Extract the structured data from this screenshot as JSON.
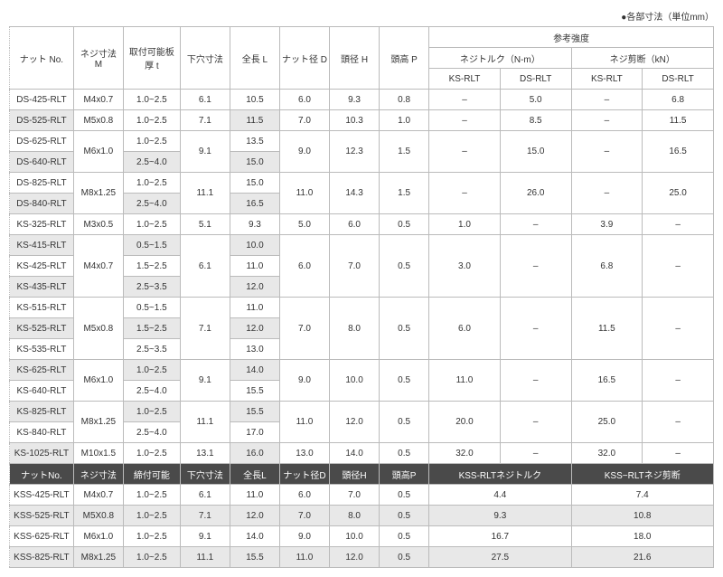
{
  "caption": "●各部寸法（単位mm）",
  "headers": {
    "nut_no": "ナット\nNo.",
    "thread": "ネジ寸法\nM",
    "plate": "取付可能板厚\nt",
    "pilot": "下穴寸法",
    "length": "全長\nL",
    "nut_d": "ナット径\nD",
    "head_h": "頭径\nH",
    "head_p": "頭高\nP",
    "ref": "参考強度",
    "torque": "ネジトルク（N-m）",
    "shear": "ネジ剪断（kN）",
    "ks_rlt": "KS-RLT",
    "ds_rlt": "DS-RLT"
  },
  "headers2": {
    "nut_no": "ナットNo.",
    "thread": "ネジ寸法",
    "plate": "締付可能",
    "pilot": "下穴寸法",
    "length": "全長L",
    "nut_d": "ナット径D",
    "head_h": "頭径H",
    "head_p": "頭高P",
    "torque": "KSS-RLTネジトルク",
    "shear": "KSS−RLTネジ剪断"
  },
  "rows": [
    {
      "no": "DS-425-RLT",
      "m": "M4x0.7",
      "t": "1.0~2.5",
      "pilot": "6.1",
      "l": "10.5",
      "d": "6.0",
      "h": "9.3",
      "p": "0.8",
      "tq_ks": "–",
      "tq_ds": "5.0",
      "sh_ks": "–",
      "sh_ds": "6.8"
    },
    {
      "no": "DS-525-RLT",
      "m": "M5x0.8",
      "t": "1.0~2.5",
      "pilot": "7.1",
      "l": "11.5",
      "d": "7.0",
      "h": "10.3",
      "p": "1.0",
      "tq_ks": "–",
      "tq_ds": "8.5",
      "sh_ks": "–",
      "sh_ds": "11.5",
      "shade": true
    },
    {
      "no": "DS-625-RLT",
      "m": "M6x1.0",
      "m_rs": 2,
      "t": "1.0~2.5",
      "pilot": "9.1",
      "pilot_rs": 2,
      "l": "13.5",
      "d": "9.0",
      "d_rs": 2,
      "h": "12.3",
      "h_rs": 2,
      "p": "1.5",
      "p_rs": 2,
      "tq_ks": "–",
      "tq_ks_rs": 2,
      "tq_ds": "15.0",
      "tq_ds_rs": 2,
      "sh_ks": "–",
      "sh_ks_rs": 2,
      "sh_ds": "16.5",
      "sh_ds_rs": 2
    },
    {
      "no": "DS-640-RLT",
      "t": "2.5~4.0",
      "l": "15.0",
      "shade": true,
      "shade_t": true
    },
    {
      "no": "DS-825-RLT",
      "m": "M8x1.25",
      "m_rs": 2,
      "t": "1.0~2.5",
      "pilot": "11.1",
      "pilot_rs": 2,
      "l": "15.0",
      "d": "11.0",
      "d_rs": 2,
      "h": "14.3",
      "h_rs": 2,
      "p": "1.5",
      "p_rs": 2,
      "tq_ks": "–",
      "tq_ks_rs": 2,
      "tq_ds": "26.0",
      "tq_ds_rs": 2,
      "sh_ks": "–",
      "sh_ks_rs": 2,
      "sh_ds": "25.0",
      "sh_ds_rs": 2
    },
    {
      "no": "DS-840-RLT",
      "t": "2.5~4.0",
      "l": "16.5",
      "shade": true,
      "shade_t": true
    },
    {
      "no": "KS-325-RLT",
      "m": "M3x0.5",
      "t": "1.0~2.5",
      "pilot": "5.1",
      "l": "9.3",
      "d": "5.0",
      "h": "6.0",
      "p": "0.5",
      "tq_ks": "1.0",
      "tq_ds": "–",
      "sh_ks": "3.9",
      "sh_ds": "–"
    },
    {
      "no": "KS-415-RLT",
      "m": "M4x0.7",
      "m_rs": 3,
      "t": "0.5~1.5",
      "pilot": "6.1",
      "pilot_rs": 3,
      "l": "10.0",
      "d": "6.0",
      "d_rs": 3,
      "h": "7.0",
      "h_rs": 3,
      "p": "0.5",
      "p_rs": 3,
      "tq_ks": "3.0",
      "tq_ks_rs": 3,
      "tq_ds": "–",
      "tq_ds_rs": 3,
      "sh_ks": "6.8",
      "sh_ks_rs": 3,
      "sh_ds": "–",
      "sh_ds_rs": 3,
      "shade": true,
      "shade_t": true
    },
    {
      "no": "KS-425-RLT",
      "t": "1.5~2.5",
      "l": "11.0"
    },
    {
      "no": "KS-435-RLT",
      "t": "2.5~3.5",
      "l": "12.0",
      "shade": true,
      "shade_t": true
    },
    {
      "no": "KS-515-RLT",
      "m": "M5x0.8",
      "m_rs": 3,
      "t": "0.5~1.5",
      "pilot": "7.1",
      "pilot_rs": 3,
      "l": "11.0",
      "d": "7.0",
      "d_rs": 3,
      "h": "8.0",
      "h_rs": 3,
      "p": "0.5",
      "p_rs": 3,
      "tq_ks": "6.0",
      "tq_ks_rs": 3,
      "tq_ds": "–",
      "tq_ds_rs": 3,
      "sh_ks": "11.5",
      "sh_ks_rs": 3,
      "sh_ds": "–",
      "sh_ds_rs": 3
    },
    {
      "no": "KS-525-RLT",
      "t": "1.5~2.5",
      "l": "12.0",
      "shade": true,
      "shade_t": true
    },
    {
      "no": "KS-535-RLT",
      "t": "2.5~3.5",
      "l": "13.0"
    },
    {
      "no": "KS-625-RLT",
      "m": "M6x1.0",
      "m_rs": 2,
      "t": "1.0~2.5",
      "pilot": "9.1",
      "pilot_rs": 2,
      "l": "14.0",
      "d": "9.0",
      "d_rs": 2,
      "h": "10.0",
      "h_rs": 2,
      "p": "0.5",
      "p_rs": 2,
      "tq_ks": "11.0",
      "tq_ks_rs": 2,
      "tq_ds": "–",
      "tq_ds_rs": 2,
      "sh_ks": "16.5",
      "sh_ks_rs": 2,
      "sh_ds": "–",
      "sh_ds_rs": 2,
      "shade": true,
      "shade_t": true
    },
    {
      "no": "KS-640-RLT",
      "t": "2.5~4.0",
      "l": "15.5"
    },
    {
      "no": "KS-825-RLT",
      "m": "M8x1.25",
      "m_rs": 2,
      "t": "1.0~2.5",
      "pilot": "11.1",
      "pilot_rs": 2,
      "l": "15.5",
      "d": "11.0",
      "d_rs": 2,
      "h": "12.0",
      "h_rs": 2,
      "p": "0.5",
      "p_rs": 2,
      "tq_ks": "20.0",
      "tq_ks_rs": 2,
      "tq_ds": "–",
      "tq_ds_rs": 2,
      "sh_ks": "25.0",
      "sh_ks_rs": 2,
      "sh_ds": "–",
      "sh_ds_rs": 2,
      "shade": true,
      "shade_t": true
    },
    {
      "no": "KS-840-RLT",
      "t": "2.5~4.0",
      "l": "17.0"
    },
    {
      "no": "KS-1025-RLT",
      "m": "M10x1.5",
      "t": "1.0~2.5",
      "pilot": "13.1",
      "l": "16.0",
      "d": "13.0",
      "h": "14.0",
      "p": "0.5",
      "tq_ks": "32.0",
      "tq_ds": "–",
      "sh_ks": "32.0",
      "sh_ds": "–",
      "shade": true
    }
  ],
  "rows2": [
    {
      "no": "KSS-425-RLT",
      "m": "M4x0.7",
      "t": "1.0~2.5",
      "pilot": "6.1",
      "l": "11.0",
      "d": "6.0",
      "h": "7.0",
      "p": "0.5",
      "tq": "4.4",
      "sh": "7.4"
    },
    {
      "no": "KSS-525-RLT",
      "m": "M5X0.8",
      "t": "1.0~2.5",
      "pilot": "7.1",
      "l": "12.0",
      "d": "7.0",
      "h": "8.0",
      "p": "0.5",
      "tq": "9.3",
      "sh": "10.8",
      "shade": true
    },
    {
      "no": "KSS-625-RLT",
      "m": "M6x1.0",
      "t": "1.0~2.5",
      "pilot": "9.1",
      "l": "14.0",
      "d": "9.0",
      "h": "10.0",
      "p": "0.5",
      "tq": "16.7",
      "sh": "18.0"
    },
    {
      "no": "KSS-825-RLT",
      "m": "M8x1.25",
      "t": "1.0~2.5",
      "pilot": "11.1",
      "l": "15.5",
      "d": "11.0",
      "h": "12.0",
      "p": "0.5",
      "tq": "27.5",
      "sh": "21.6",
      "shade": true
    }
  ]
}
